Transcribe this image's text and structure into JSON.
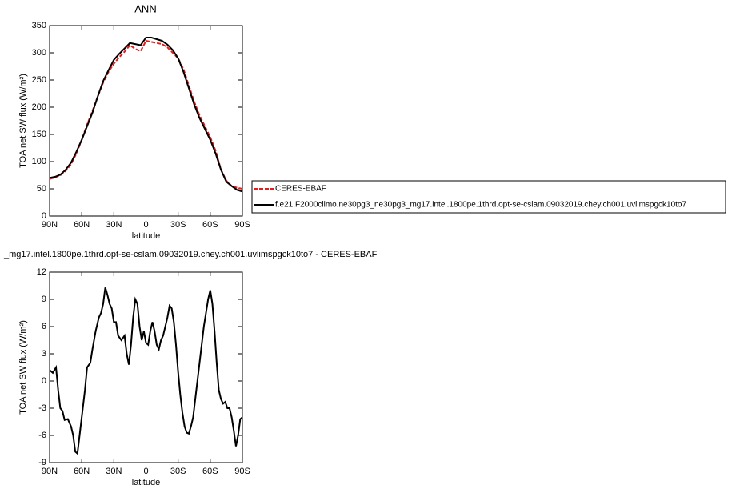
{
  "chart_data": [
    {
      "type": "line",
      "title": "ANN",
      "xlabel": "latitude",
      "ylabel": "TOA net SW flux (W/m²)",
      "x": [
        90,
        85,
        80,
        75,
        70,
        65,
        60,
        55,
        50,
        45,
        40,
        35,
        30,
        25,
        20,
        15,
        10,
        5,
        0,
        -5,
        -10,
        -15,
        -20,
        -25,
        -30,
        -35,
        -40,
        -45,
        -50,
        -55,
        -60,
        -65,
        -70,
        -75,
        -80,
        -85,
        -90
      ],
      "series": [
        {
          "name": "CERES-EBAF",
          "color": "#e41a1c",
          "linestyle": "dashed",
          "values": [
            68,
            71,
            75,
            83,
            95,
            115,
            140,
            168,
            193,
            220,
            245,
            265,
            280,
            292,
            302,
            314,
            307,
            303,
            322,
            320,
            318,
            316,
            310,
            300,
            290,
            270,
            240,
            210,
            185,
            165,
            145,
            120,
            85,
            65,
            55,
            52,
            50
          ]
        },
        {
          "name": "f.e21.F2000climo.ne30pg3_ne30pg3_mg17.intel.1800pe.1thrd.opt-se-cslam.09032019.chey.ch001.uvlimspgck10to7",
          "color": "#000000",
          "linestyle": "solid",
          "values": [
            70,
            72,
            76,
            85,
            98,
            118,
            140,
            165,
            190,
            220,
            248,
            268,
            287,
            298,
            308,
            318,
            316,
            314,
            328,
            328,
            325,
            322,
            315,
            305,
            290,
            265,
            235,
            205,
            180,
            160,
            140,
            115,
            85,
            63,
            55,
            48,
            45
          ]
        }
      ],
      "xlim": [
        90,
        -90
      ],
      "xticks": [
        {
          "value": 90,
          "label": "90N"
        },
        {
          "value": 60,
          "label": "60N"
        },
        {
          "value": 30,
          "label": "30N"
        },
        0,
        {
          "value": -30,
          "label": "30S"
        },
        {
          "value": -60,
          "label": "60S"
        },
        {
          "value": -90,
          "label": "90S"
        }
      ],
      "ylim": [
        0,
        350
      ],
      "yticks": [
        0,
        50,
        100,
        150,
        200,
        250,
        300,
        350
      ],
      "grid": false
    },
    {
      "type": "line",
      "title": "_mg17.intel.1800pe.1thrd.opt-se-cslam.09032019.chey.ch001.uvlimspgck10to7 - CERES-EBAF",
      "xlabel": "latitude",
      "ylabel": "TOA net SW flux (W/m²)",
      "x": [
        90,
        87,
        84,
        82,
        80,
        78,
        76,
        73,
        70,
        68,
        66,
        64,
        62,
        60,
        57,
        55,
        52,
        50,
        47,
        44,
        42,
        40,
        38,
        36,
        34,
        32,
        30,
        28,
        26,
        23,
        20,
        18,
        16,
        14,
        12,
        10,
        8,
        6,
        4,
        2,
        0,
        -2,
        -4,
        -6,
        -8,
        -10,
        -12,
        -14,
        -16,
        -18,
        -20,
        -22,
        -24,
        -26,
        -28,
        -30,
        -32,
        -34,
        -36,
        -38,
        -40,
        -42,
        -44,
        -46,
        -48,
        -50,
        -52,
        -54,
        -56,
        -58,
        -60,
        -62,
        -64,
        -66,
        -68,
        -70,
        -72,
        -74,
        -76,
        -78,
        -80,
        -82,
        -84,
        -86,
        -88,
        -90
      ],
      "series": [
        {
          "color": "#000000",
          "linestyle": "solid",
          "values": [
            1.2,
            0.9,
            1.5,
            -1,
            -3,
            -3.3,
            -4.3,
            -4.2,
            -5,
            -6,
            -7.8,
            -8,
            -6,
            -4,
            -1,
            1.5,
            2,
            3.5,
            5.5,
            7,
            7.5,
            8.5,
            10.3,
            9.5,
            8.5,
            8,
            6.5,
            6.5,
            5,
            4.5,
            5,
            3,
            1.8,
            4,
            7,
            9,
            8.5,
            6,
            4.5,
            5.5,
            4.2,
            4,
            5.5,
            6.5,
            5.5,
            4,
            3.5,
            4.5,
            5,
            6,
            7,
            8.3,
            8,
            6.5,
            4,
            1,
            -1.5,
            -3.5,
            -5,
            -5.7,
            -5.8,
            -5,
            -4,
            -2,
            0,
            2,
            4,
            6,
            7.5,
            9,
            10,
            8.5,
            5.5,
            2,
            -1,
            -2,
            -2.5,
            -2.3,
            -3,
            -3,
            -4,
            -5.5,
            -7.2,
            -6,
            -4.2,
            -4
          ]
        }
      ],
      "xlim": [
        90,
        -90
      ],
      "xticks": [
        {
          "value": 90,
          "label": "90N"
        },
        {
          "value": 60,
          "label": "60N"
        },
        {
          "value": 30,
          "label": "30N"
        },
        0,
        {
          "value": -30,
          "label": "30S"
        },
        {
          "value": -60,
          "label": "60S"
        },
        {
          "value": -90,
          "label": "90S"
        }
      ],
      "ylim": [
        -9,
        12
      ],
      "yticks": [
        -9,
        -6,
        -3,
        0,
        3,
        6,
        9,
        12
      ],
      "grid": false
    }
  ]
}
